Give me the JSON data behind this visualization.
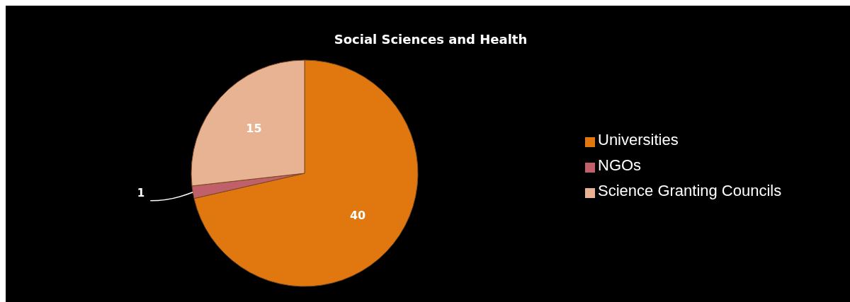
{
  "chart_data": {
    "type": "pie",
    "title": "Social Sciences and Health",
    "categories": [
      "Universities",
      "NGOs",
      "Science Granting Councils"
    ],
    "values": [
      40,
      1,
      15
    ],
    "colors": [
      "#e0780f",
      "#c0606a",
      "#e8b392"
    ],
    "data_labels": true,
    "legend": "right"
  }
}
